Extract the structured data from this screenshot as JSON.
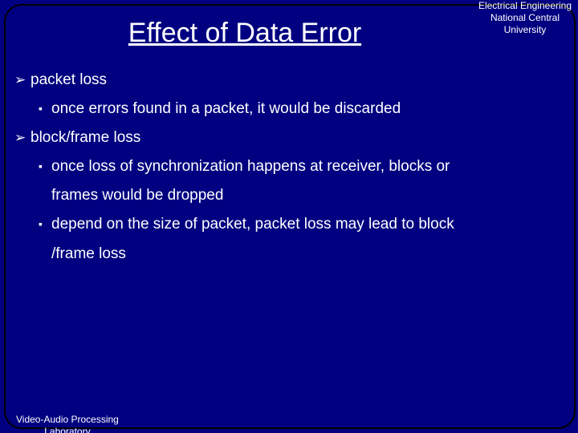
{
  "colors": {
    "background": "#000080",
    "outer": "#000000",
    "frame_border": "#000000",
    "text": "#ffffff"
  },
  "typography": {
    "title_fontsize": 34,
    "body_fontsize": 19,
    "header_fontsize": 12,
    "footer_fontsize": 12,
    "title_underline": true
  },
  "header": {
    "line1": "Electrical Engineering",
    "line2": "National Central",
    "line3": "University"
  },
  "title": "Effect of Data Error",
  "bullets": [
    {
      "level": 1,
      "text": "packet loss"
    },
    {
      "level": 2,
      "text": "once errors found in a packet, it would be discarded"
    },
    {
      "level": 1,
      "text": "block/frame loss"
    },
    {
      "level": 2,
      "text": "once loss of synchronization happens at receiver, blocks or"
    },
    {
      "level": "2cont",
      "text": "frames would be dropped"
    },
    {
      "level": 2,
      "text": "depend on the size of packet, packet loss may lead to block"
    },
    {
      "level": "2cont",
      "text": "/frame loss"
    }
  ],
  "footer": {
    "line1": "Video-Audio Processing",
    "line2": "Laboratory"
  }
}
